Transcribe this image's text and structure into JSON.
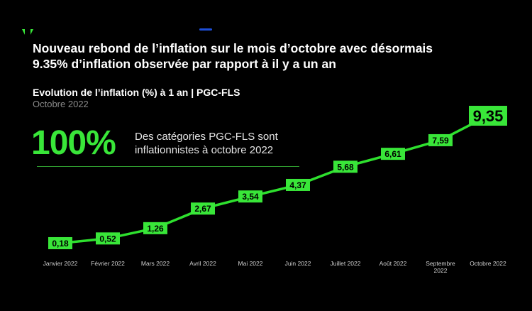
{
  "header": {
    "headline_line1": "Nouveau rebond de l’inflation sur le mois d’octobre avec désormais",
    "headline_line2": "9.35% d’inflation observée par rapport à il y a un an",
    "subtitle": "Evolution de l’inflation (%) à 1 an | PGC-FLS",
    "date": "Octobre 2022"
  },
  "stat": {
    "value": "100%",
    "description_line1": "Des catégories PGC-FLS sont",
    "description_line2": "inflationnistes à octobre 2022"
  },
  "colors": {
    "background": "#000000",
    "accent": "#39e639",
    "line": "#2ee02e"
  },
  "chart_data": {
    "type": "line",
    "categories": [
      "Janvier 2022",
      "Février 2022",
      "Mars 2022",
      "Avril 2022",
      "Mai 2022",
      "Juin 2022",
      "Juillet 2022",
      "Août 2022",
      "Septembre 2022",
      "Octobre 2022"
    ],
    "values": [
      0.18,
      0.52,
      1.26,
      2.67,
      3.54,
      4.37,
      5.68,
      6.61,
      7.59,
      9.35
    ],
    "labels": [
      "0,18",
      "0,52",
      "1,26",
      "2,67",
      "3,54",
      "4,37",
      "5,68",
      "6,61",
      "7,59",
      "9,35"
    ],
    "ylim": [
      0,
      9.35
    ],
    "grid": false,
    "legend": "none",
    "highlight_last": true
  }
}
